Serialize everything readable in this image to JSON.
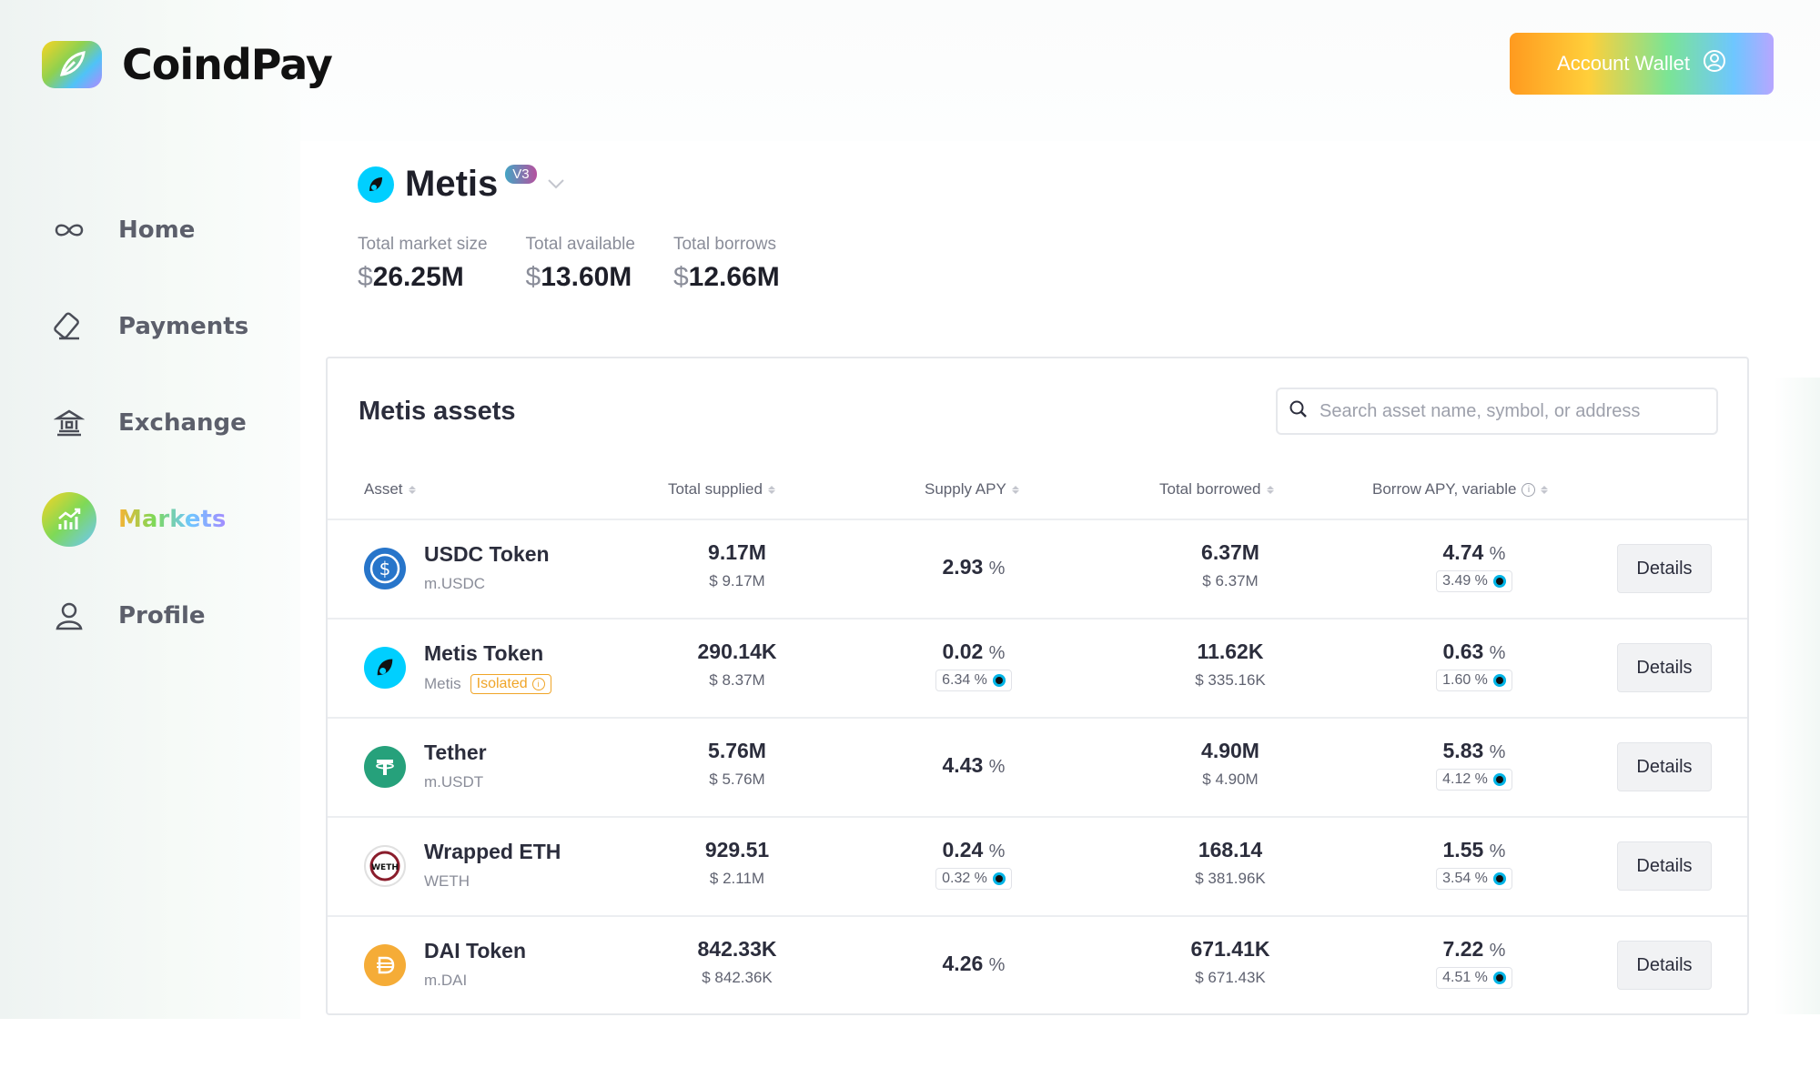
{
  "header": {
    "brand": "CoindPay",
    "wallet_button": "Account Wallet",
    "logo_icon": "leaf-logo-icon",
    "wallet_icon": "user-circle-icon"
  },
  "sidebar": {
    "items": [
      {
        "label": "Home",
        "icon": "infinity-icon",
        "active": false
      },
      {
        "label": "Payments",
        "icon": "card-pen-icon",
        "active": false
      },
      {
        "label": "Exchange",
        "icon": "bank-icon",
        "active": false
      },
      {
        "label": "Markets",
        "icon": "chart-growth-icon",
        "active": true
      },
      {
        "label": "Profile",
        "icon": "user-icon",
        "active": false
      }
    ]
  },
  "market": {
    "name": "Metis",
    "version": "V3",
    "stats": [
      {
        "label": "Total market size",
        "currency": "$",
        "value": "26.25M"
      },
      {
        "label": "Total available",
        "currency": "$",
        "value": "13.60M"
      },
      {
        "label": "Total borrows",
        "currency": "$",
        "value": "12.66M"
      }
    ]
  },
  "table": {
    "title": "Metis assets",
    "search_placeholder": "Search asset name, symbol, or address",
    "columns": [
      "Asset",
      "Total supplied",
      "Supply APY",
      "Total borrowed",
      "Borrow APY, variable"
    ],
    "details_label": "Details",
    "isolated_label": "Isolated",
    "rows": [
      {
        "name": "USDC Token",
        "symbol": "m.USDC",
        "isolated": false,
        "icon_color": "#2775ca",
        "supplied": "9.17M",
        "supplied_usd": "$ 9.17M",
        "supply_apy": "2.93",
        "supply_incentive": "",
        "borrowed": "6.37M",
        "borrowed_usd": "$ 6.37M",
        "borrow_apy": "4.74",
        "borrow_incentive": "3.49 %"
      },
      {
        "name": "Metis Token",
        "symbol": "Metis",
        "isolated": true,
        "icon_color": "#00cfff",
        "supplied": "290.14K",
        "supplied_usd": "$ 8.37M",
        "supply_apy": "0.02",
        "supply_incentive": "6.34 %",
        "borrowed": "11.62K",
        "borrowed_usd": "$ 335.16K",
        "borrow_apy": "0.63",
        "borrow_incentive": "1.60 %"
      },
      {
        "name": "Tether",
        "symbol": "m.USDT",
        "isolated": false,
        "icon_color": "#26a17b",
        "supplied": "5.76M",
        "supplied_usd": "$ 5.76M",
        "supply_apy": "4.43",
        "supply_incentive": "",
        "borrowed": "4.90M",
        "borrowed_usd": "$ 4.90M",
        "borrow_apy": "5.83",
        "borrow_incentive": "4.12 %"
      },
      {
        "name": "Wrapped ETH",
        "symbol": "WETH",
        "isolated": false,
        "icon_color": "#ffffff",
        "supplied": "929.51",
        "supplied_usd": "$ 2.11M",
        "supply_apy": "0.24",
        "supply_incentive": "0.32 %",
        "borrowed": "168.14",
        "borrowed_usd": "$ 381.96K",
        "borrow_apy": "1.55",
        "borrow_incentive": "3.54 %"
      },
      {
        "name": "DAI Token",
        "symbol": "m.DAI",
        "isolated": false,
        "icon_color": "#f5ac37",
        "supplied": "842.33K",
        "supplied_usd": "$ 842.36K",
        "supply_apy": "4.26",
        "supply_incentive": "",
        "borrowed": "671.41K",
        "borrowed_usd": "$ 671.43K",
        "borrow_apy": "7.22",
        "borrow_incentive": "4.51 %"
      }
    ]
  }
}
